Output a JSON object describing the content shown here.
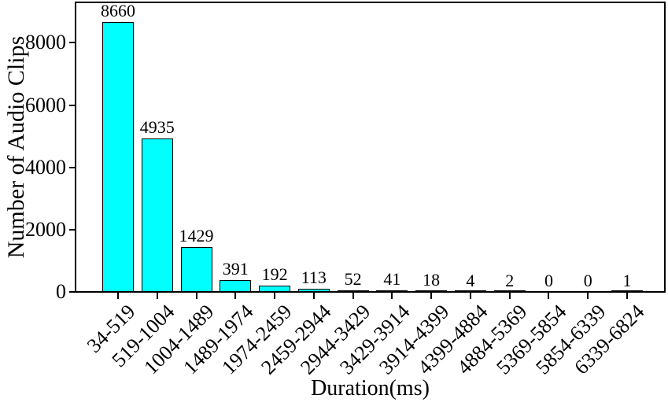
{
  "figure": {
    "background_color": "#ffffff",
    "text_color": "#000000"
  },
  "chart_data": {
    "type": "bar",
    "title": "",
    "xlabel": "Duration(ms)",
    "ylabel": "Number of Audio Clips",
    "categories": [
      "34-519",
      "519-1004",
      "1004-1489",
      "1489-1974",
      "1974-2459",
      "2459-2944",
      "2944-3429",
      "3429-3914",
      "3914-4399",
      "4399-4884",
      "4884-5369",
      "5369-5854",
      "5854-6339",
      "6339-6824"
    ],
    "values": [
      8660,
      4935,
      1429,
      391,
      192,
      113,
      52,
      41,
      18,
      4,
      2,
      0,
      0,
      1
    ],
    "bar_labels": [
      "8660",
      "4935",
      "1429",
      "391",
      "192",
      "113",
      "52",
      "41",
      "18",
      "4",
      "2",
      "0",
      "0",
      "1"
    ],
    "yticks": [
      0,
      2000,
      4000,
      6000,
      8000
    ],
    "ytick_labels": [
      "0",
      "2000",
      "4000",
      "6000",
      "8000"
    ],
    "ylim": [
      0,
      9300
    ],
    "grid": false,
    "legend": null,
    "bar_color": "#00ffff",
    "bar_edge_color": "#000000",
    "axis_color": "#000000"
  }
}
